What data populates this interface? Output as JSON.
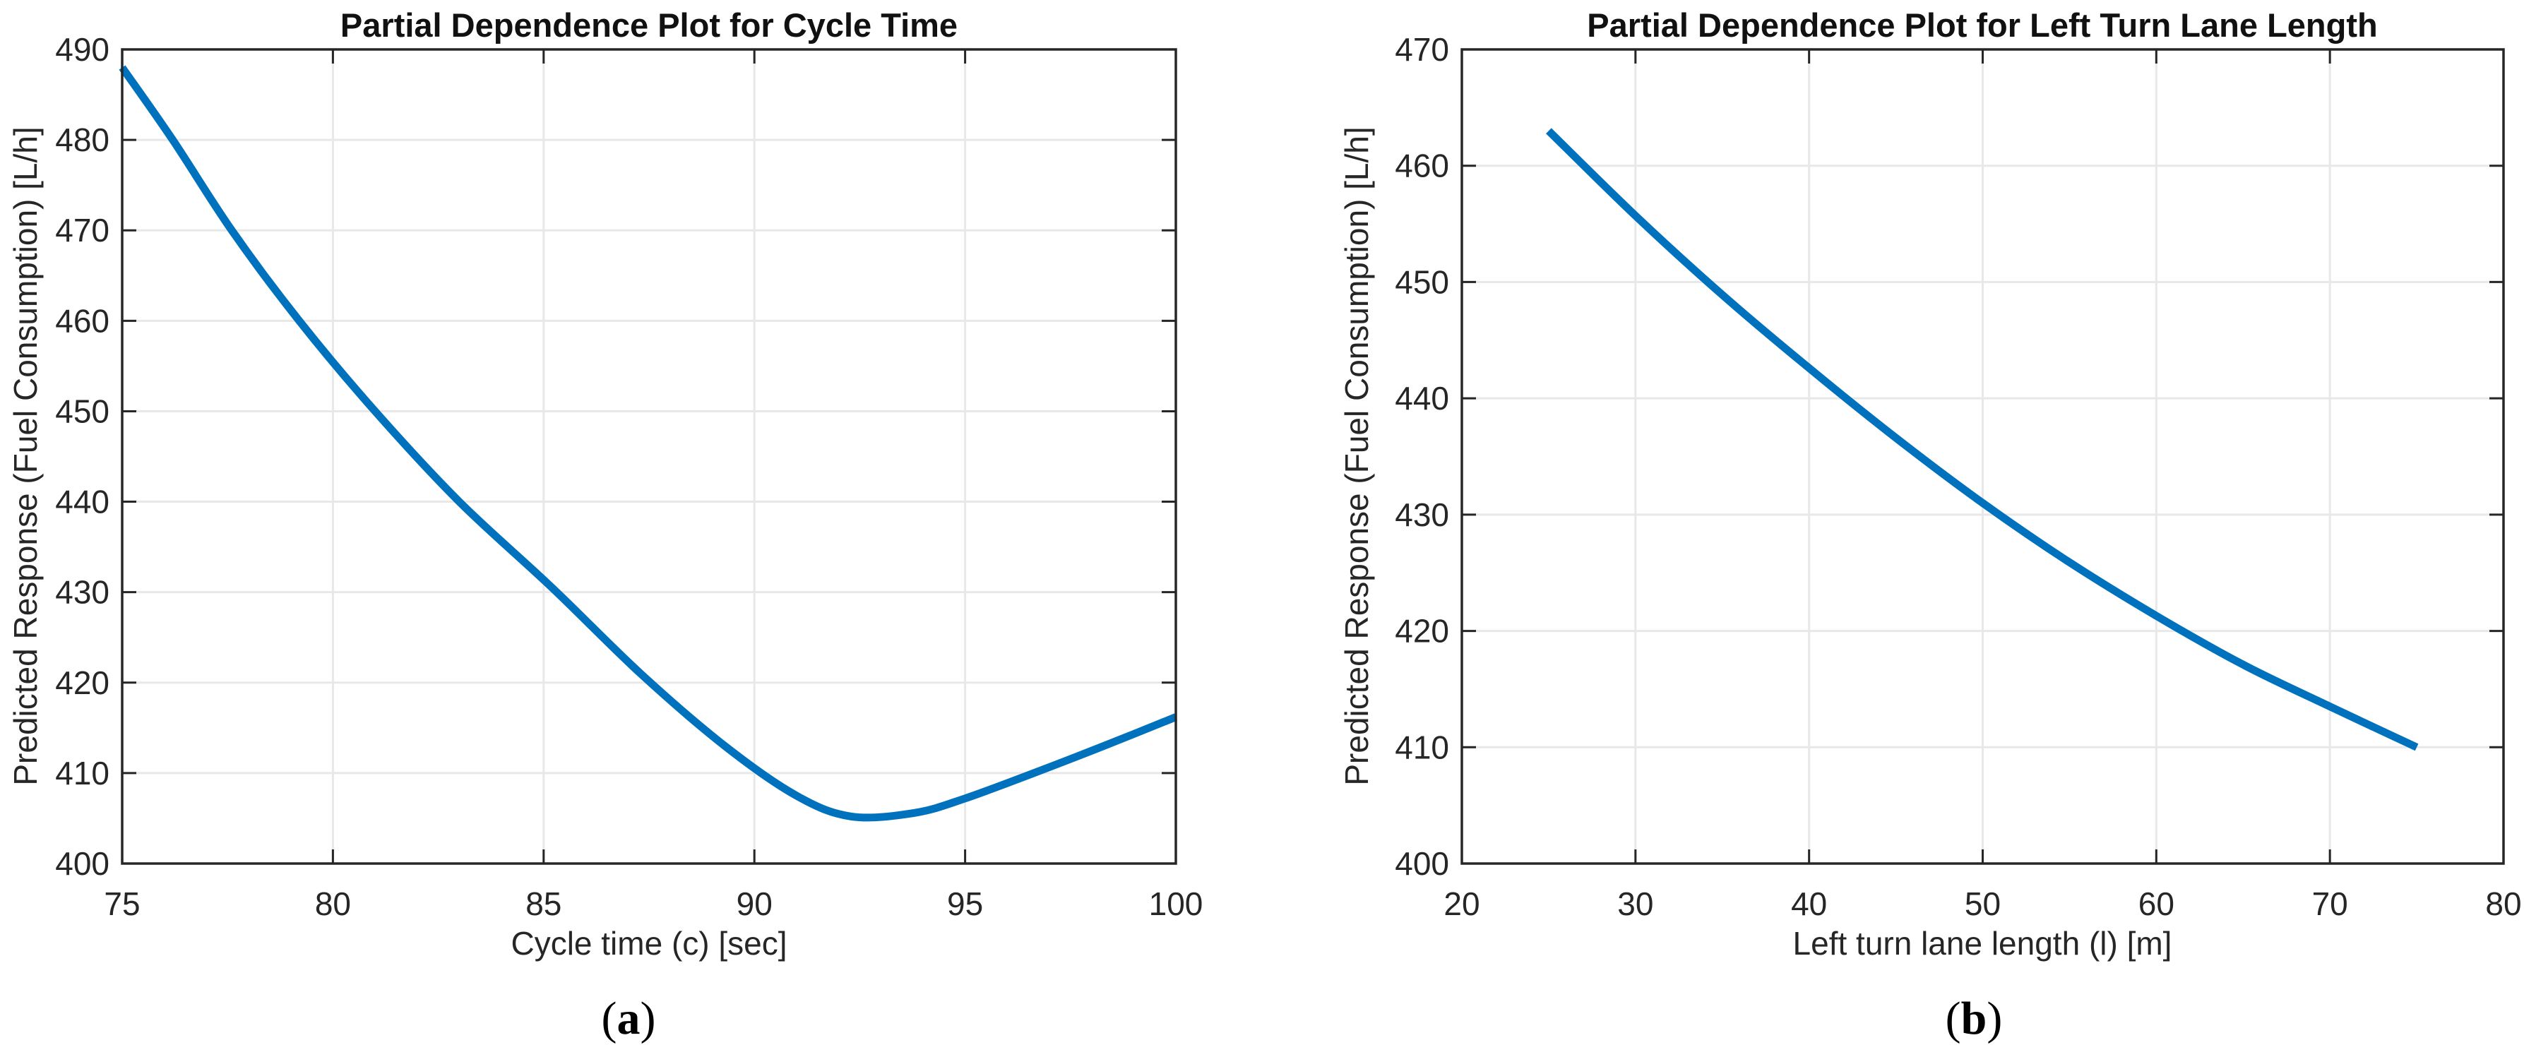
{
  "figure": {
    "background_color": "#ffffff",
    "line_color": "#0072bd",
    "grid_color": "#e8e8e8",
    "axis_color": "#262626",
    "tick_text_color": "#262626",
    "title_color": "#111111"
  },
  "chart_data": [
    {
      "type": "line",
      "title": "Partial Dependence Plot for Cycle Time",
      "xlabel": "Cycle time (c) [sec]",
      "ylabel": "Predicted Response (Fuel Consumption) [L/h]",
      "sublabel": "(a)",
      "xlim": [
        75,
        100
      ],
      "ylim": [
        400,
        490
      ],
      "xticks": [
        75,
        80,
        85,
        90,
        95,
        100
      ],
      "yticks": [
        400,
        410,
        420,
        430,
        440,
        450,
        460,
        470,
        480,
        490
      ],
      "grid": true,
      "legend": "none",
      "series": [
        {
          "name": "partial-dependence-cycle-time",
          "x": [
            75,
            76.2,
            77.6,
            79.2,
            81.0,
            83.0,
            85.2,
            87.3,
            89.3,
            91.0,
            92.3,
            93.8,
            95.0,
            96.8,
            98.4,
            100
          ],
          "y": [
            488.0,
            480.0,
            470.0,
            460.0,
            450.0,
            440.0,
            430.5,
            421.0,
            413.0,
            407.5,
            405.2,
            405.6,
            407.2,
            410.3,
            413.2,
            416.2
          ]
        }
      ]
    },
    {
      "type": "line",
      "title": "Partial Dependence Plot for Left Turn Lane Length",
      "xlabel": "Left turn lane length (l) [m]",
      "ylabel": "Predicted Response (Fuel Consumption) [L/h]",
      "sublabel": "(b)",
      "xlim": [
        20,
        80
      ],
      "ylim": [
        400,
        470
      ],
      "xticks": [
        20,
        30,
        40,
        50,
        60,
        70,
        80
      ],
      "yticks": [
        400,
        410,
        420,
        430,
        440,
        450,
        460,
        470
      ],
      "grid": true,
      "legend": "none",
      "series": [
        {
          "name": "partial-dependence-left-turn-lane-length",
          "x": [
            25,
            30,
            35,
            40,
            45,
            50,
            55,
            60,
            65,
            70,
            75
          ],
          "y": [
            463.0,
            455.7,
            448.9,
            442.6,
            436.6,
            431.0,
            425.9,
            421.3,
            417.1,
            413.5,
            410.0
          ]
        }
      ]
    }
  ]
}
